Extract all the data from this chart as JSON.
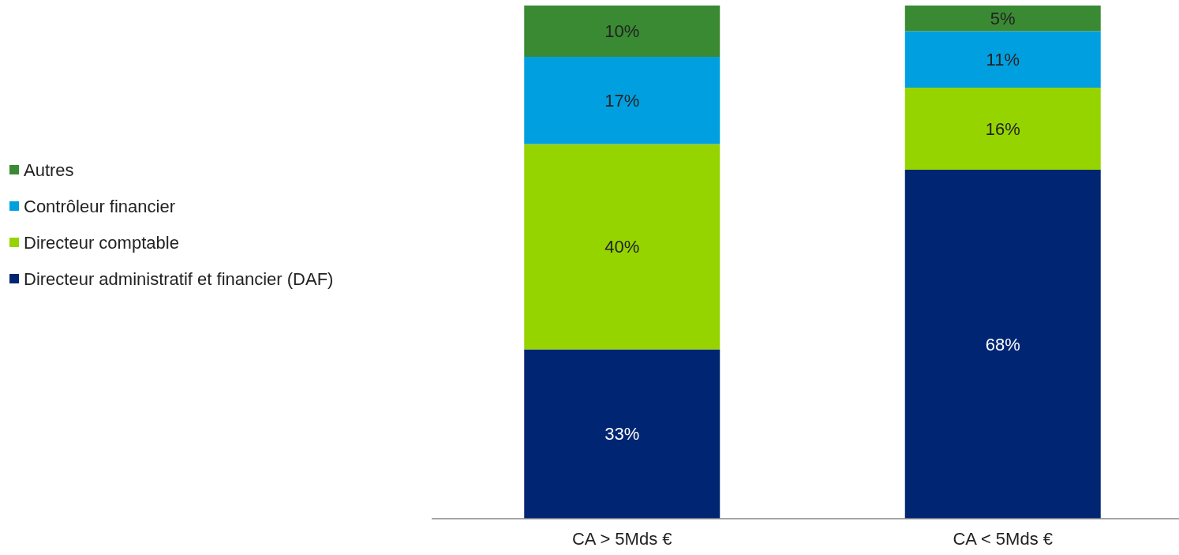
{
  "chart_data": {
    "type": "bar",
    "stacked": true,
    "categories": [
      "CA > 5Mds €",
      "CA < 5Mds €"
    ],
    "legend": "left",
    "series": [
      {
        "name": "Directeur administratif et financier (DAF)",
        "color": "#002673",
        "values": [
          33,
          68
        ],
        "value_labels": [
          "33%",
          "68%"
        ]
      },
      {
        "name": "Directeur comptable",
        "color": "#96d400",
        "values": [
          40,
          16
        ],
        "value_labels": [
          "40%",
          "16%"
        ]
      },
      {
        "name": "Contrôleur financier",
        "color": "#00a0e0",
        "values": [
          17,
          11
        ],
        "value_labels": [
          "17%",
          "11%"
        ]
      },
      {
        "name": "Autres",
        "color": "#3a8a33",
        "values": [
          10,
          5
        ],
        "value_labels": [
          "10%",
          "5%"
        ]
      }
    ]
  }
}
